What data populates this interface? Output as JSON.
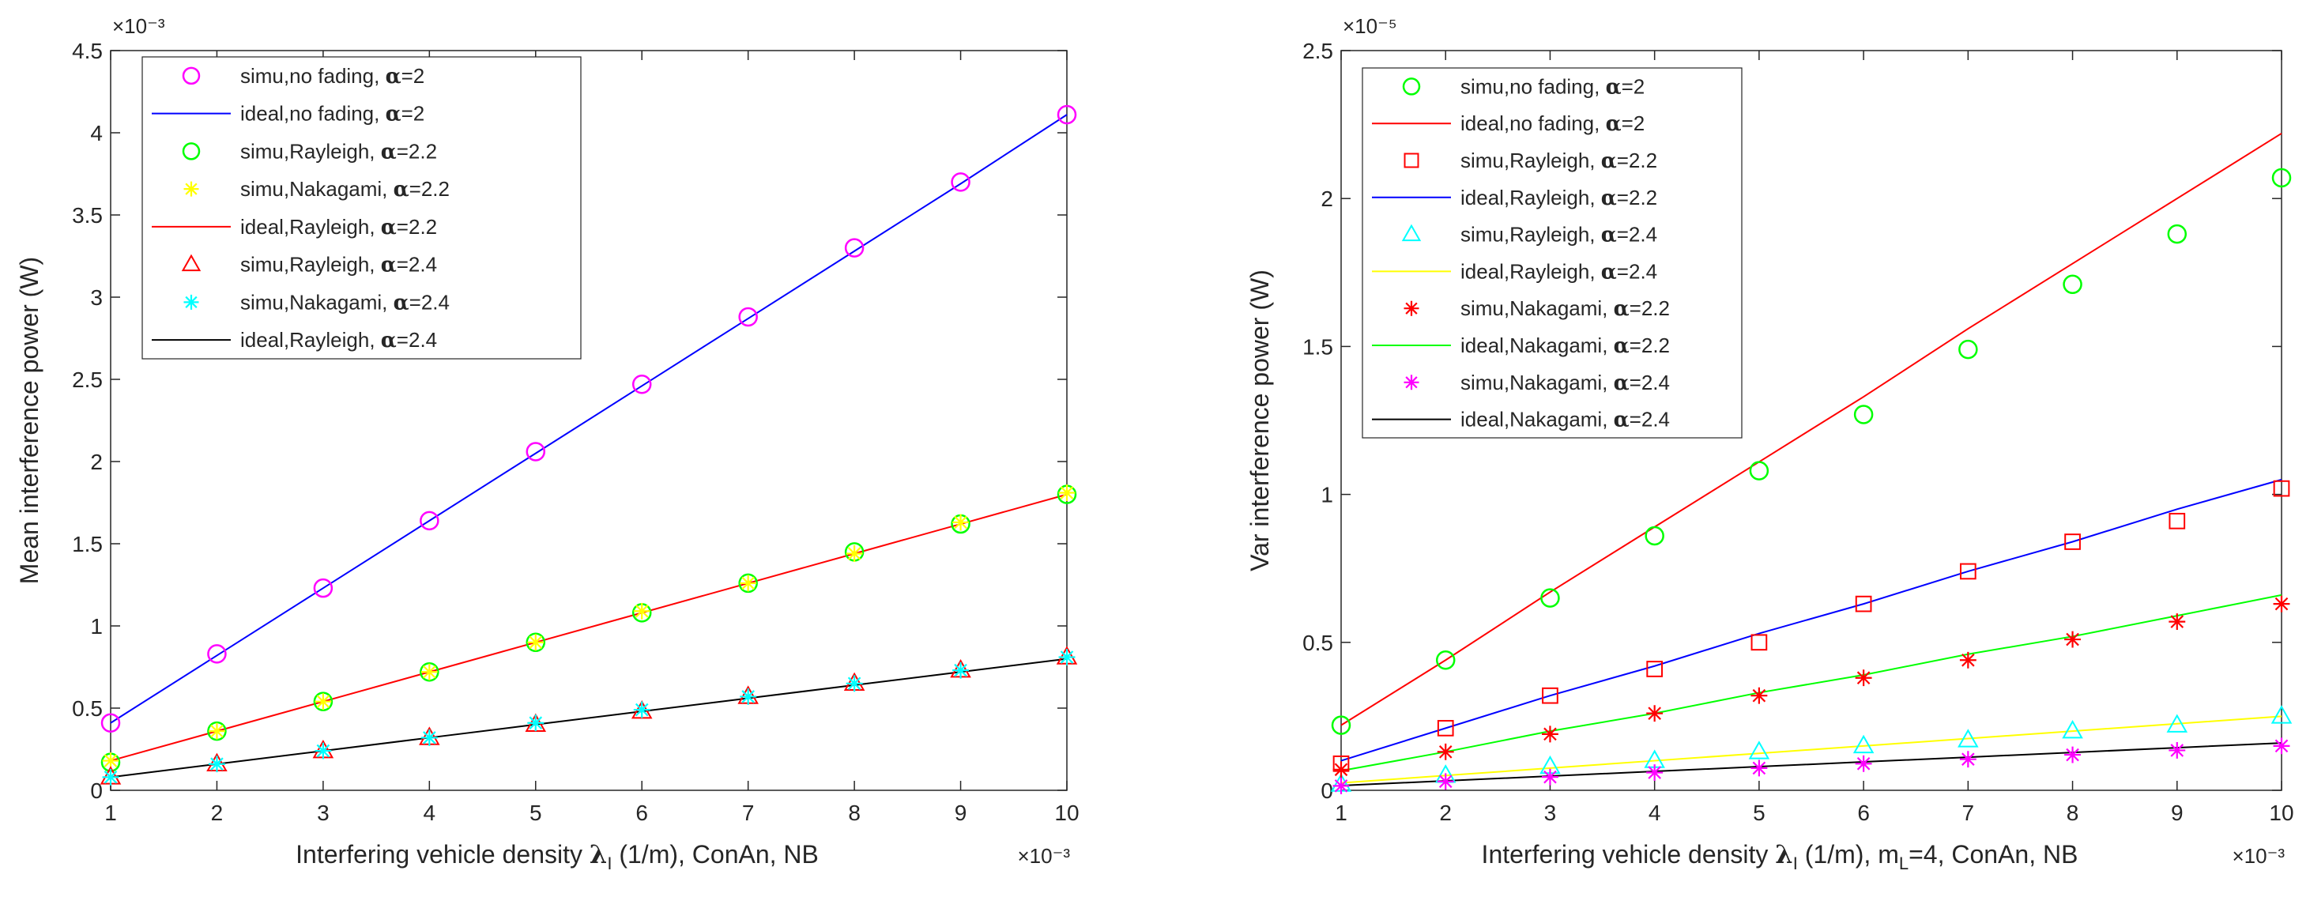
{
  "chart_data": [
    {
      "type": "line",
      "title": "",
      "xlabel_parts": [
        "Interfering  vehicle  density ",
        "λ",
        "I",
        " (1/m), ConAn, NB"
      ],
      "ylabel": "Mean  interference  power (W)",
      "x_exponent": "×10⁻³",
      "y_exponent": "×10⁻³",
      "xlim": [
        1,
        10
      ],
      "ylim": [
        0,
        4.5
      ],
      "xticks": [
        "1",
        "2",
        "3",
        "4",
        "5",
        "6",
        "7",
        "8",
        "9",
        "10"
      ],
      "yticks": [
        "0",
        "0.5",
        "1",
        "1.5",
        "2",
        "2.5",
        "3",
        "3.5",
        "4",
        "4.5"
      ],
      "x": [
        1,
        2,
        3,
        4,
        5,
        6,
        7,
        8,
        9,
        10
      ],
      "grid": false,
      "legend_position": "top-left",
      "series": [
        {
          "name": "simu,no fading, α=2",
          "legend_prefix": "simu,no fading, ",
          "kind": "marker",
          "marker": "circle",
          "color": "#ff00ff",
          "values": [
            0.41,
            0.83,
            1.23,
            1.64,
            2.06,
            2.47,
            2.88,
            3.3,
            3.7,
            4.11
          ]
        },
        {
          "name": "ideal,no fading, α=2",
          "legend_prefix": "ideal,no fading, ",
          "kind": "line",
          "color": "#0000ff",
          "values": [
            0.41,
            0.82,
            1.23,
            1.64,
            2.05,
            2.46,
            2.87,
            3.28,
            3.69,
            4.11
          ]
        },
        {
          "name": "simu,Rayleigh, α=2.2",
          "legend_prefix": "simu,Rayleigh, ",
          "kind": "marker",
          "marker": "circle",
          "color": "#00ff00",
          "values": [
            0.17,
            0.36,
            0.54,
            0.72,
            0.9,
            1.08,
            1.26,
            1.45,
            1.62,
            1.8
          ]
        },
        {
          "name": "simu,Nakagami, α=2.2",
          "legend_prefix": "simu,Nakagami, ",
          "kind": "marker",
          "marker": "star",
          "color": "#ffff00",
          "values": [
            0.18,
            0.36,
            0.54,
            0.72,
            0.9,
            1.09,
            1.26,
            1.44,
            1.63,
            1.81
          ]
        },
        {
          "name": "ideal,Rayleigh, α=2.2",
          "legend_prefix": "ideal,Rayleigh, ",
          "kind": "line",
          "color": "#ff0000",
          "values": [
            0.18,
            0.36,
            0.54,
            0.72,
            0.9,
            1.08,
            1.26,
            1.44,
            1.62,
            1.8
          ]
        },
        {
          "name": "simu,Rayleigh, α=2.4",
          "legend_prefix": "simu,Rayleigh, ",
          "kind": "marker",
          "marker": "triangle",
          "color": "#ff0000",
          "values": [
            0.08,
            0.16,
            0.24,
            0.32,
            0.4,
            0.48,
            0.57,
            0.65,
            0.73,
            0.81
          ]
        },
        {
          "name": "simu,Nakagami, α=2.4",
          "legend_prefix": "simu,Nakagami, ",
          "kind": "marker",
          "marker": "star",
          "color": "#00ffff",
          "values": [
            0.08,
            0.16,
            0.24,
            0.32,
            0.41,
            0.49,
            0.57,
            0.65,
            0.73,
            0.81
          ]
        },
        {
          "name": "ideal,Rayleigh, α=2.4",
          "legend_prefix": "ideal,Rayleigh, ",
          "kind": "line",
          "color": "#000000",
          "values": [
            0.08,
            0.16,
            0.24,
            0.32,
            0.4,
            0.48,
            0.56,
            0.64,
            0.72,
            0.8
          ]
        }
      ]
    },
    {
      "type": "line",
      "title": "",
      "xlabel_parts": [
        "Interfering vehicle  density ",
        "λ",
        "I",
        " (1/m), m",
        "L",
        "=4, ConAn, NB"
      ],
      "ylabel": "Var interference power (W)",
      "x_exponent": "×10⁻³",
      "y_exponent": "×10⁻⁵",
      "xlim": [
        1,
        10
      ],
      "ylim": [
        0,
        2.5
      ],
      "xticks": [
        "1",
        "2",
        "3",
        "4",
        "5",
        "6",
        "7",
        "8",
        "9",
        "10"
      ],
      "yticks": [
        "0",
        "0.5",
        "1",
        "1.5",
        "2",
        "2.5"
      ],
      "x": [
        1,
        2,
        3,
        4,
        5,
        6,
        7,
        8,
        9,
        10
      ],
      "grid": false,
      "legend_position": "top-left",
      "series": [
        {
          "name": "simu,no fading, α=2",
          "legend_prefix": "simu,no fading, ",
          "kind": "marker",
          "marker": "circle",
          "color": "#00ff00",
          "values": [
            0.22,
            0.44,
            0.65,
            0.86,
            1.08,
            1.27,
            1.49,
            1.71,
            1.88,
            2.07
          ]
        },
        {
          "name": "ideal,no fading, α=2",
          "legend_prefix": "ideal,no fading, ",
          "kind": "line",
          "color": "#ff0000",
          "values": [
            0.22,
            0.44,
            0.67,
            0.89,
            1.11,
            1.33,
            1.56,
            1.78,
            2.0,
            2.22
          ]
        },
        {
          "name": "simu,Rayleigh, α=2.2",
          "legend_prefix": "simu,Rayleigh, ",
          "kind": "marker",
          "marker": "square",
          "color": "#ff0000",
          "values": [
            0.09,
            0.21,
            0.32,
            0.41,
            0.5,
            0.63,
            0.74,
            0.84,
            0.91,
            1.02
          ]
        },
        {
          "name": "ideal,Rayleigh, α=2.2",
          "legend_prefix": "ideal,Rayleigh, ",
          "kind": "line",
          "color": "#0000ff",
          "values": [
            0.1,
            0.21,
            0.32,
            0.42,
            0.53,
            0.63,
            0.74,
            0.84,
            0.95,
            1.05
          ]
        },
        {
          "name": "simu,Rayleigh, α=2.4",
          "legend_prefix": "simu,Rayleigh, ",
          "kind": "marker",
          "marker": "triangle",
          "color": "#00ffff",
          "values": [
            0.02,
            0.05,
            0.08,
            0.1,
            0.13,
            0.15,
            0.17,
            0.2,
            0.22,
            0.25
          ]
        },
        {
          "name": "ideal,Rayleigh, α=2.4",
          "legend_prefix": "ideal,Rayleigh, ",
          "kind": "line",
          "color": "#ffff00",
          "values": [
            0.025,
            0.05,
            0.075,
            0.1,
            0.125,
            0.15,
            0.175,
            0.2,
            0.225,
            0.25
          ]
        },
        {
          "name": "simu,Nakagami, α=2.2",
          "legend_prefix": "simu,Nakagami, ",
          "kind": "marker",
          "marker": "star",
          "color": "#ff0000",
          "values": [
            0.07,
            0.13,
            0.19,
            0.26,
            0.32,
            0.38,
            0.44,
            0.51,
            0.57,
            0.63
          ]
        },
        {
          "name": "ideal,Nakagami, α=2.2",
          "legend_prefix": "ideal,Nakagami, ",
          "kind": "line",
          "color": "#00ff00",
          "values": [
            0.066,
            0.13,
            0.2,
            0.26,
            0.33,
            0.39,
            0.46,
            0.52,
            0.59,
            0.66
          ]
        },
        {
          "name": "simu,Nakagami, α=2.4",
          "legend_prefix": "simu,Nakagami, ",
          "kind": "marker",
          "marker": "star",
          "color": "#ff00ff",
          "values": [
            0.015,
            0.03,
            0.045,
            0.06,
            0.075,
            0.09,
            0.105,
            0.12,
            0.135,
            0.15
          ]
        },
        {
          "name": "ideal,Nakagami, α=2.4",
          "legend_prefix": "ideal,Nakagami, ",
          "kind": "line",
          "color": "#000000",
          "values": [
            0.016,
            0.032,
            0.048,
            0.064,
            0.08,
            0.096,
            0.112,
            0.128,
            0.144,
            0.16
          ]
        }
      ]
    }
  ]
}
